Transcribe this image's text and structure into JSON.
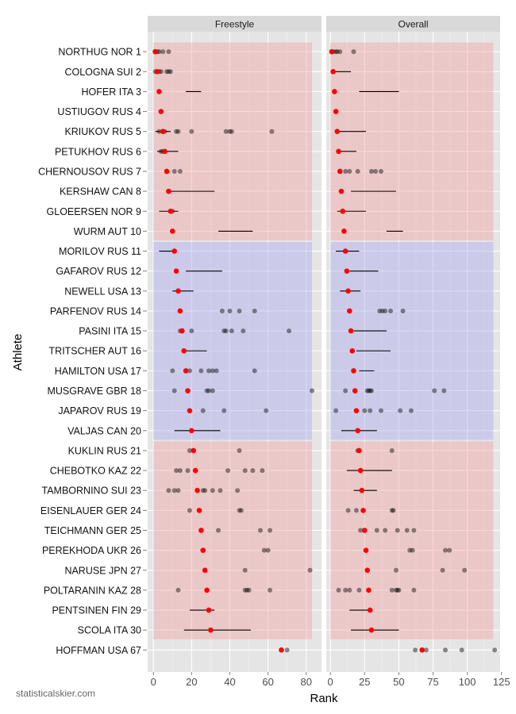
{
  "chart_data": {
    "type": "scatter",
    "xlabel": "Rank",
    "ylabel": "Athlete",
    "credit": "statisticalskier.com",
    "athletes": [
      "NORTHUG NOR 1",
      "COLOGNA SUI 2",
      "HOFER ITA 3",
      "USTIUGOV RUS 4",
      "KRIUKOV RUS 5",
      "PETUKHOV RUS 6",
      "CHERNOUSOV RUS 7",
      "KERSHAW CAN 8",
      "GLOEERSEN NOR 9",
      "WURM AUT 10",
      "MORILOV RUS 11",
      "GAFAROV RUS 12",
      "NEWELL USA 13",
      "PARFENOV RUS 14",
      "PASINI ITA 15",
      "TRITSCHER AUT 16",
      "HAMILTON USA 17",
      "MUSGRAVE GBR 18",
      "JAPAROV RUS 19",
      "VALJAS CAN 20",
      "KUKLIN RUS 21",
      "CHEBOTKO KAZ 22",
      "TAMBORNINO SUI 23",
      "EISENLAUER GER 24",
      "TEICHMANN GER 25",
      "PEREKHODA UKR 26",
      "NARUSE JPN 27",
      "POLTARANIN KAZ 28",
      "PENTSINEN FIN 29",
      "SCOLA ITA 30",
      "HOFFMAN USA 67"
    ],
    "bands": [
      {
        "from": 1,
        "to": 10,
        "color": "#f2a0a0"
      },
      {
        "from": 11,
        "to": 20,
        "color": "#a8a8ee"
      },
      {
        "from": 21,
        "to": 30,
        "color": "#f2a0a0"
      }
    ],
    "panels": [
      {
        "title": "Freestyle",
        "xlim": [
          -3,
          88
        ],
        "xticks": [
          0,
          20,
          40,
          60,
          80
        ],
        "band_xmax": 83,
        "rows": [
          {
            "rank": 1,
            "lo": null,
            "hi": null,
            "pts": [
              1,
              2,
              3,
              5,
              8
            ]
          },
          {
            "rank": 2,
            "lo": null,
            "hi": null,
            "pts": [
              1,
              2,
              3,
              4,
              7,
              8,
              9
            ]
          },
          {
            "rank": 3,
            "lo": 17,
            "hi": 25,
            "pts": []
          },
          {
            "rank": 4,
            "lo": null,
            "hi": null,
            "pts": []
          },
          {
            "rank": 5,
            "lo": 1,
            "hi": 9,
            "pts": [
              3,
              6,
              12,
              13,
              20,
              38,
              40,
              41,
              62
            ]
          },
          {
            "rank": 6,
            "lo": 2,
            "hi": 13,
            "pts": [
              4,
              5
            ]
          },
          {
            "rank": 7,
            "lo": null,
            "hi": null,
            "pts": [
              11,
              14
            ]
          },
          {
            "rank": 8,
            "lo": 8,
            "hi": 32,
            "pts": []
          },
          {
            "rank": 9,
            "lo": 3,
            "hi": 13,
            "pts": [
              10
            ]
          },
          {
            "rank": 10,
            "lo": 34,
            "hi": 52,
            "pts": []
          },
          {
            "rank": 11,
            "lo": 3,
            "hi": 12,
            "pts": []
          },
          {
            "rank": 12,
            "lo": 17,
            "hi": 36,
            "pts": []
          },
          {
            "rank": 13,
            "lo": 10,
            "hi": 21,
            "pts": []
          },
          {
            "rank": 14,
            "lo": null,
            "hi": null,
            "pts": [
              36,
              40,
              45,
              53
            ]
          },
          {
            "rank": 15,
            "lo": null,
            "hi": null,
            "pts": [
              14,
              15,
              20,
              37,
              38,
              41,
              47,
              71
            ]
          },
          {
            "rank": 16,
            "lo": 16,
            "hi": 28,
            "pts": []
          },
          {
            "rank": 17,
            "lo": null,
            "hi": null,
            "pts": [
              10,
              19,
              25,
              29,
              31,
              33,
              53
            ]
          },
          {
            "rank": 18,
            "lo": null,
            "hi": null,
            "pts": [
              11,
              28,
              29,
              31,
              83
            ]
          },
          {
            "rank": 19,
            "lo": null,
            "hi": null,
            "pts": [
              26,
              37,
              59
            ]
          },
          {
            "rank": 20,
            "lo": 11,
            "hi": 35,
            "pts": []
          },
          {
            "rank": 21,
            "lo": null,
            "hi": null,
            "pts": [
              19,
              45
            ]
          },
          {
            "rank": 22,
            "lo": null,
            "hi": null,
            "pts": [
              12,
              14,
              18,
              39,
              48,
              52,
              57
            ]
          },
          {
            "rank": 23,
            "lo": null,
            "hi": null,
            "pts": [
              8,
              11,
              13,
              26,
              27,
              31,
              35,
              44
            ]
          },
          {
            "rank": 24,
            "lo": null,
            "hi": null,
            "pts": [
              19,
              45,
              46
            ]
          },
          {
            "rank": 25,
            "lo": null,
            "hi": null,
            "pts": [
              34,
              56,
              61
            ]
          },
          {
            "rank": 26,
            "lo": null,
            "hi": null,
            "pts": [
              58,
              60
            ]
          },
          {
            "rank": 27,
            "lo": null,
            "hi": null,
            "pts": [
              48,
              82
            ]
          },
          {
            "rank": 28,
            "lo": null,
            "hi": null,
            "pts": [
              13,
              48,
              49,
              50,
              61
            ]
          },
          {
            "rank": 29,
            "lo": 19,
            "hi": 32,
            "pts": []
          },
          {
            "rank": 30,
            "lo": 16,
            "hi": 51,
            "pts": []
          },
          {
            "rank": 67,
            "lo": null,
            "hi": null,
            "pts": [
              70
            ]
          }
        ]
      },
      {
        "title": "Overall",
        "xlim": [
          -3,
          124
        ],
        "xticks": [
          0,
          25,
          50,
          75,
          100,
          125
        ],
        "band_xmax": 119,
        "rows": [
          {
            "rank": 1,
            "lo": null,
            "hi": null,
            "pts": [
              1,
              2,
              4,
              5,
              7,
              17
            ]
          },
          {
            "rank": 2,
            "lo": 2,
            "hi": 15,
            "pts": []
          },
          {
            "rank": 3,
            "lo": 21,
            "hi": 50,
            "pts": []
          },
          {
            "rank": 4,
            "lo": null,
            "hi": null,
            "pts": []
          },
          {
            "rank": 5,
            "lo": 4,
            "hi": 26,
            "pts": []
          },
          {
            "rank": 6,
            "lo": 6,
            "hi": 19,
            "pts": []
          },
          {
            "rank": 7,
            "lo": null,
            "hi": null,
            "pts": [
              11,
              14,
              20,
              30,
              33,
              37
            ]
          },
          {
            "rank": 8,
            "lo": 15,
            "hi": 48,
            "pts": []
          },
          {
            "rank": 9,
            "lo": 5,
            "hi": 26,
            "pts": []
          },
          {
            "rank": 10,
            "lo": 41,
            "hi": 53,
            "pts": []
          },
          {
            "rank": 11,
            "lo": 4,
            "hi": 21,
            "pts": []
          },
          {
            "rank": 12,
            "lo": 14,
            "hi": 35,
            "pts": []
          },
          {
            "rank": 13,
            "lo": 7,
            "hi": 22,
            "pts": []
          },
          {
            "rank": 14,
            "lo": null,
            "hi": null,
            "pts": [
              36,
              38,
              40,
              44,
              53
            ]
          },
          {
            "rank": 15,
            "lo": 17,
            "hi": 41,
            "pts": []
          },
          {
            "rank": 16,
            "lo": 19,
            "hi": 44,
            "pts": []
          },
          {
            "rank": 17,
            "lo": 21,
            "hi": 32,
            "pts": []
          },
          {
            "rank": 18,
            "lo": null,
            "hi": null,
            "pts": [
              11,
              27,
              28,
              29,
              30,
              76,
              83
            ]
          },
          {
            "rank": 19,
            "lo": null,
            "hi": null,
            "pts": [
              4,
              25,
              29,
              37,
              51,
              59
            ]
          },
          {
            "rank": 20,
            "lo": 8,
            "hi": 34,
            "pts": []
          },
          {
            "rank": 21,
            "lo": null,
            "hi": null,
            "pts": [
              20,
              45
            ]
          },
          {
            "rank": 22,
            "lo": 12,
            "hi": 45,
            "pts": []
          },
          {
            "rank": 23,
            "lo": 17,
            "hi": 34,
            "pts": []
          },
          {
            "rank": 24,
            "lo": null,
            "hi": null,
            "pts": [
              13,
              19,
              45,
              46
            ]
          },
          {
            "rank": 25,
            "lo": null,
            "hi": null,
            "pts": [
              22,
              34,
              40,
              49,
              56,
              61
            ]
          },
          {
            "rank": 26,
            "lo": null,
            "hi": null,
            "pts": [
              58,
              60,
              84,
              87
            ]
          },
          {
            "rank": 27,
            "lo": null,
            "hi": null,
            "pts": [
              48,
              82,
              98
            ]
          },
          {
            "rank": 28,
            "lo": null,
            "hi": null,
            "pts": [
              6,
              11,
              14,
              21,
              45,
              48,
              49,
              50,
              61
            ]
          },
          {
            "rank": 29,
            "lo": 14,
            "hi": 30,
            "pts": []
          },
          {
            "rank": 30,
            "lo": 15,
            "hi": 50,
            "pts": []
          },
          {
            "rank": 67,
            "lo": null,
            "hi": null,
            "pts": [
              62,
              70,
              84,
              96,
              120
            ]
          }
        ]
      }
    ]
  }
}
